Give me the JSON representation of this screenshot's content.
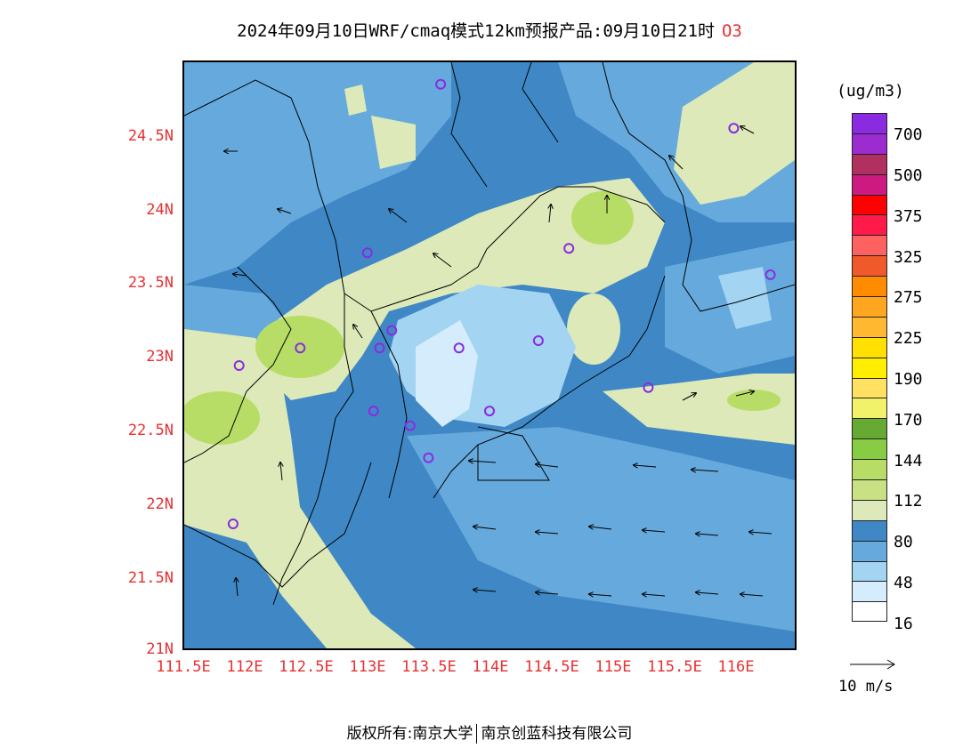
{
  "title": "2024年09月10日WRF/cmaq模式12km预报产品:09月10日21时",
  "species": "O3",
  "unit": "(ug/m3)",
  "y_ticks": [
    "24.5N",
    "24N",
    "23.5N",
    "23N",
    "22.5N",
    "22N",
    "21.5N",
    "21N"
  ],
  "x_ticks": [
    "111.5E",
    "112E",
    "112.5E",
    "113E",
    "113.5E",
    "114E",
    "114.5E",
    "115E",
    "115.5E",
    "116E"
  ],
  "legend": {
    "labels": [
      "700",
      "500",
      "375",
      "325",
      "275",
      "225",
      "190",
      "170",
      "144",
      "112",
      "80",
      "48",
      "16"
    ],
    "colors": [
      "#8a2be2",
      "#9c2bd0",
      "#b03060",
      "#cc1a80",
      "#ff0000",
      "#ff1a4a",
      "#ff6060",
      "#f05a2a",
      "#ff8c00",
      "#ffa620",
      "#ffb830",
      "#ffe000",
      "#ffee00",
      "#ffe060",
      "#f2f26a",
      "#66aa33",
      "#88cc44",
      "#b8dd66",
      "#c9e083",
      "#dde9b8",
      "#3f88c5",
      "#66aadd",
      "#a3d4f2",
      "#d4ecfb",
      "#ffffff"
    ]
  },
  "wind_ref": "10 m/s",
  "footer": {
    "left": "版权所有:南京大学",
    "right": "南京创蓝科技有限公司"
  },
  "colors": {
    "axis_text": "#e83030",
    "level_80_112": "#dde9b8",
    "level_48_80": "#3f88c5",
    "level_32_48": "#66aadd",
    "level_16_32": "#a3d4f2",
    "level_0_16": "#d4ecfb",
    "station_marker": "#8a2be2"
  },
  "map": {
    "lon_range": [
      111.5,
      116.5
    ],
    "lat_range": [
      21,
      25
    ],
    "stations": [
      [
        113.6,
        24.85
      ],
      [
        116.0,
        24.55
      ],
      [
        113.0,
        23.7
      ],
      [
        114.65,
        23.73
      ],
      [
        116.3,
        23.55
      ],
      [
        112.45,
        23.05
      ],
      [
        111.95,
        22.93
      ],
      [
        113.1,
        23.05
      ],
      [
        113.2,
        23.17
      ],
      [
        113.75,
        23.05
      ],
      [
        114.4,
        23.1
      ],
      [
        115.3,
        22.78
      ],
      [
        113.05,
        22.62
      ],
      [
        113.35,
        22.52
      ],
      [
        114.0,
        22.62
      ],
      [
        113.5,
        22.3
      ],
      [
        111.9,
        21.85
      ]
    ]
  }
}
